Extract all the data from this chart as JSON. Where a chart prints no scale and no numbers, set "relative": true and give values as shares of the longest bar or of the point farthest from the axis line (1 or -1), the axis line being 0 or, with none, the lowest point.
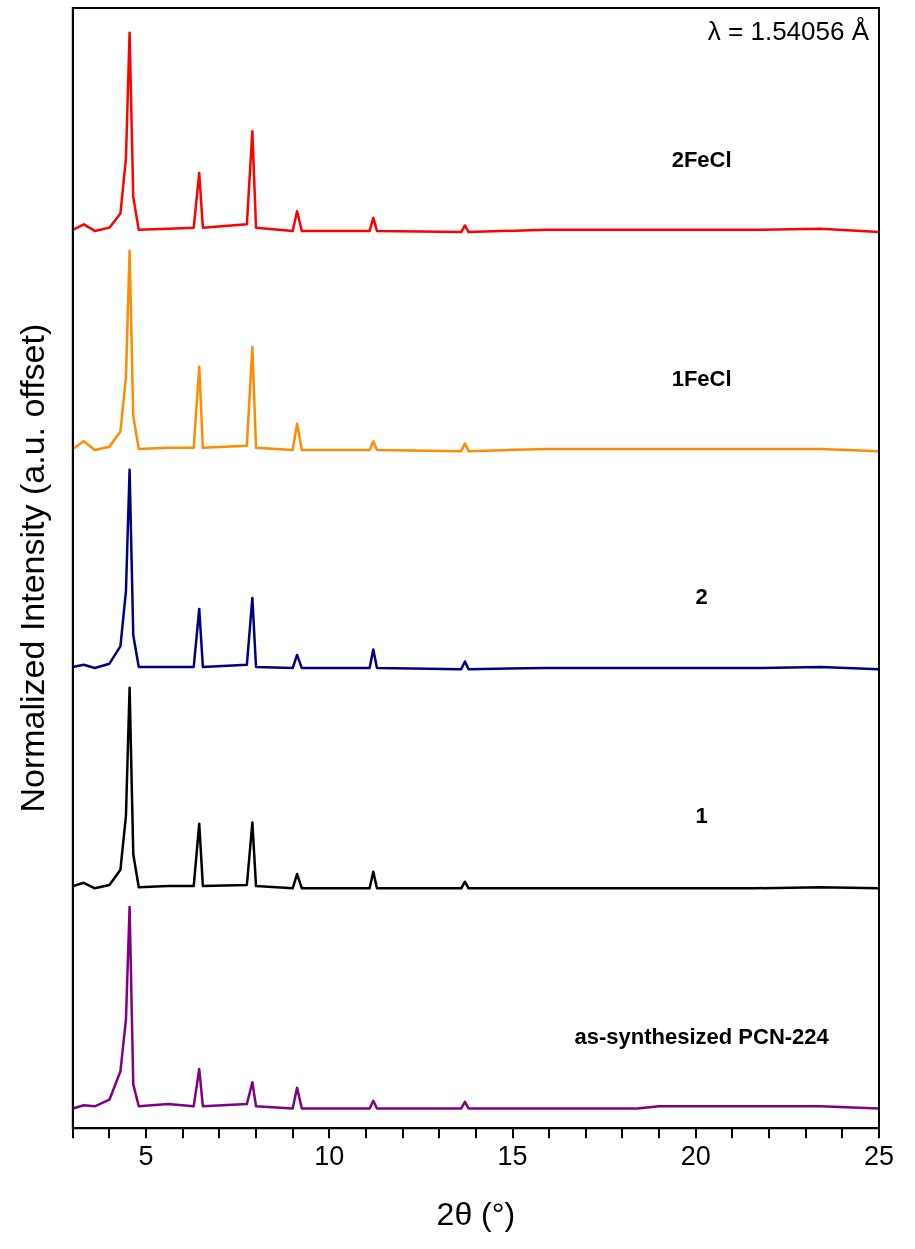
{
  "chart_data": {
    "type": "line",
    "relative": true,
    "xlabel": "2θ (°)",
    "ylabel": "Normalized Intensity (a.u. offset)",
    "annotations": [
      "λ = 1.54056 Å"
    ],
    "xlim": [
      3,
      25
    ],
    "xticks": [
      {
        "value": 3,
        "label": null
      },
      {
        "value": 4,
        "label": null
      },
      5,
      {
        "value": 6,
        "label": null
      },
      {
        "value": 7,
        "label": null
      },
      {
        "value": 8,
        "label": null
      },
      {
        "value": 9,
        "label": null
      },
      10,
      {
        "value": 11,
        "label": null
      },
      {
        "value": 12,
        "label": null
      },
      {
        "value": 13,
        "label": null
      },
      {
        "value": 14,
        "label": null
      },
      15,
      {
        "value": 16,
        "label": null
      },
      {
        "value": 17,
        "label": null
      },
      {
        "value": 18,
        "label": null
      },
      {
        "value": 19,
        "label": null
      },
      20,
      {
        "value": 21,
        "label": null
      },
      {
        "value": 22,
        "label": null
      },
      {
        "value": 23,
        "label": null
      },
      {
        "value": 24,
        "label": null
      },
      25
    ],
    "x": [
      3,
      3.3,
      3.6,
      4.0,
      4.3,
      4.45,
      4.55,
      4.65,
      4.8,
      5.6,
      6.3,
      6.45,
      6.55,
      7.75,
      7.9,
      8.0,
      9.0,
      9.12,
      9.25,
      11.1,
      11.2,
      11.3,
      13.6,
      13.7,
      13.8,
      15.9,
      18.4,
      19.0,
      21.6,
      23.4,
      25
    ],
    "legend": false,
    "grid": false,
    "marker": "none",
    "line_style": "solid",
    "series": [
      {
        "name": "2FeCl",
        "color": "#ff0000",
        "values": [
          0.82,
          0.825,
          0.819,
          0.822,
          0.835,
          0.885,
          1.0,
          0.85,
          0.82,
          0.821,
          0.822,
          0.872,
          0.822,
          0.825,
          0.91,
          0.822,
          0.819,
          0.837,
          0.819,
          0.819,
          0.831,
          0.819,
          0.818,
          0.824,
          0.818,
          0.82,
          0.82,
          0.82,
          0.82,
          0.821,
          0.818
        ]
      },
      {
        "name": "1FeCl",
        "color": "#ff8c00",
        "values": [
          0.62,
          0.627,
          0.619,
          0.622,
          0.636,
          0.685,
          0.801,
          0.65,
          0.62,
          0.621,
          0.621,
          0.695,
          0.621,
          0.623,
          0.713,
          0.621,
          0.619,
          0.643,
          0.619,
          0.619,
          0.627,
          0.619,
          0.618,
          0.625,
          0.618,
          0.62,
          0.62,
          0.62,
          0.62,
          0.62,
          0.618
        ]
      },
      {
        "name": "2",
        "color": "#000080",
        "values": [
          0.421,
          0.423,
          0.42,
          0.424,
          0.44,
          0.49,
          0.601,
          0.45,
          0.421,
          0.421,
          0.421,
          0.474,
          0.421,
          0.423,
          0.484,
          0.421,
          0.42,
          0.432,
          0.42,
          0.42,
          0.437,
          0.42,
          0.419,
          0.426,
          0.419,
          0.42,
          0.42,
          0.42,
          0.42,
          0.421,
          0.419
        ]
      },
      {
        "name": "1",
        "color": "#000000",
        "values": [
          0.221,
          0.224,
          0.219,
          0.222,
          0.236,
          0.285,
          0.402,
          0.25,
          0.22,
          0.221,
          0.221,
          0.278,
          0.221,
          0.222,
          0.279,
          0.221,
          0.219,
          0.232,
          0.219,
          0.219,
          0.234,
          0.219,
          0.219,
          0.225,
          0.219,
          0.219,
          0.219,
          0.219,
          0.219,
          0.22,
          0.219
        ]
      },
      {
        "name": "as-synthesized PCN-224",
        "color": "#800080",
        "values": [
          0.018,
          0.021,
          0.02,
          0.026,
          0.052,
          0.099,
          0.202,
          0.04,
          0.02,
          0.022,
          0.02,
          0.054,
          0.02,
          0.022,
          0.042,
          0.02,
          0.018,
          0.037,
          0.018,
          0.018,
          0.025,
          0.018,
          0.018,
          0.024,
          0.018,
          0.018,
          0.018,
          0.02,
          0.02,
          0.02,
          0.018
        ]
      }
    ]
  }
}
